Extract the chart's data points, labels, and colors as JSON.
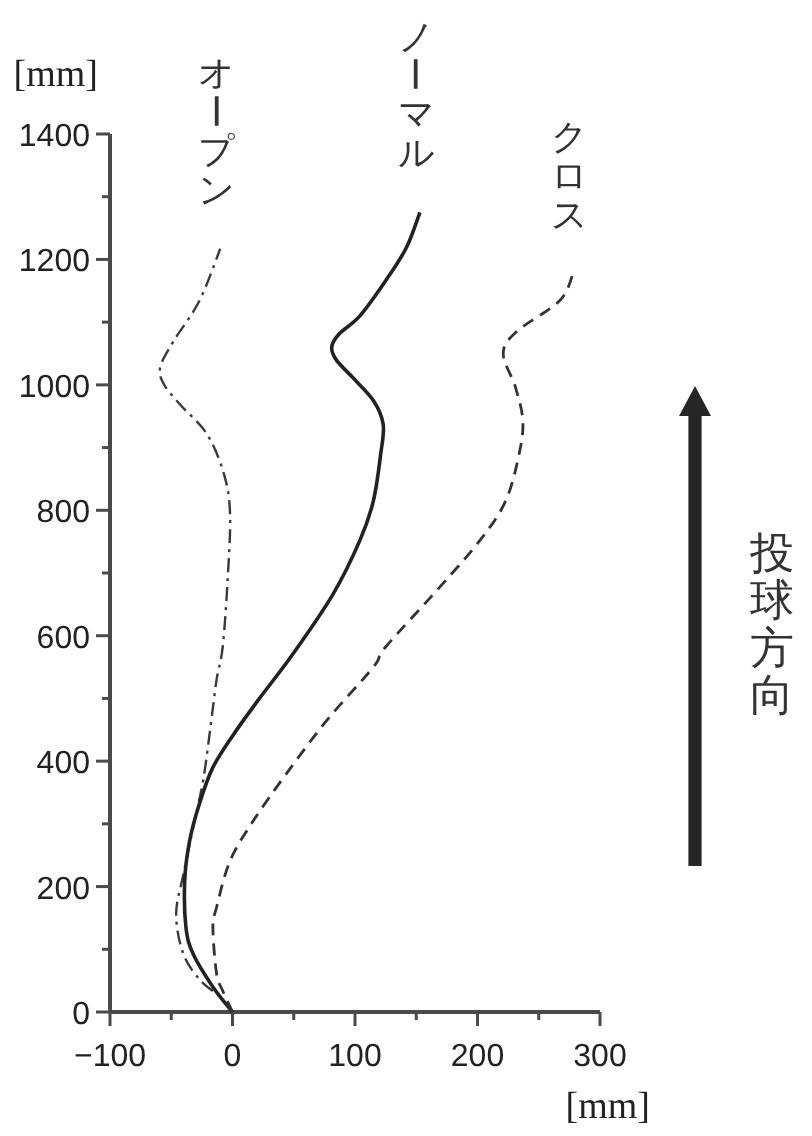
{
  "chart_data": {
    "type": "line",
    "xlabel": "[mm]",
    "ylabel": "[mm]",
    "xlim": [
      -100,
      300
    ],
    "ylim": [
      0,
      1400
    ],
    "xticks": [
      {
        "value": -100,
        "label": "−100"
      },
      {
        "value": -50,
        "label": null
      },
      0,
      {
        "value": 50,
        "label": null
      },
      100,
      {
        "value": 150,
        "label": null
      },
      200,
      {
        "value": 250,
        "label": null
      },
      300
    ],
    "yticks": [
      0,
      {
        "value": 100,
        "label": null
      },
      200,
      {
        "value": 300,
        "label": null
      },
      400,
      {
        "value": 500,
        "label": null
      },
      600,
      {
        "value": 700,
        "label": null
      },
      800,
      {
        "value": 900,
        "label": null
      },
      1000,
      {
        "value": 1100,
        "label": null
      },
      1200,
      {
        "value": 1300,
        "label": null
      },
      1400
    ],
    "series": [
      {
        "name": "オープン",
        "color": "#3a3a3a",
        "line_style": "dashdot",
        "x": [
          0,
          -10,
          -26,
          -40,
          -46,
          -40,
          -32,
          -24,
          -18,
          -13,
          -8,
          -4,
          -2,
          -7,
          -21,
          -43,
          -56,
          -59,
          -48,
          -27,
          -10
        ],
        "values": [
          0,
          24,
          50,
          92,
          156,
          220,
          295,
          369,
          454,
          530,
          582,
          688,
          794,
          858,
          922,
          969,
          1001,
          1028,
          1070,
          1134,
          1217
        ]
      },
      {
        "name": "ノーマル",
        "color": "#222222",
        "line_style": "solid",
        "x": [
          0,
          -16,
          -32,
          -38,
          -39,
          -35,
          -27,
          -16,
          1,
          22,
          49,
          82,
          104,
          115,
          121,
          123,
          115,
          98,
          85,
          81,
          87,
          104,
          125,
          142,
          153
        ],
        "values": [
          0,
          40,
          92,
          135,
          210,
          273,
          332,
          390,
          443,
          500,
          570,
          666,
          752,
          815,
          890,
          937,
          975,
          1012,
          1039,
          1060,
          1081,
          1110,
          1166,
          1219,
          1275
        ]
      },
      {
        "name": "クロス",
        "color": "#333333",
        "line_style": "dashed",
        "x": [
          0,
          -8,
          -13,
          -16,
          -13,
          -2,
          17,
          44,
          77,
          115,
          125,
          169,
          202,
          223,
          234,
          237,
          231,
          221,
          232,
          267,
          278
        ],
        "values": [
          0,
          34,
          61,
          135,
          167,
          241,
          305,
          380,
          465,
          550,
          582,
          677,
          752,
          815,
          890,
          943,
          996,
          1050,
          1085,
          1134,
          1177
        ]
      }
    ],
    "annotations": [
      "投球方向"
    ]
  }
}
